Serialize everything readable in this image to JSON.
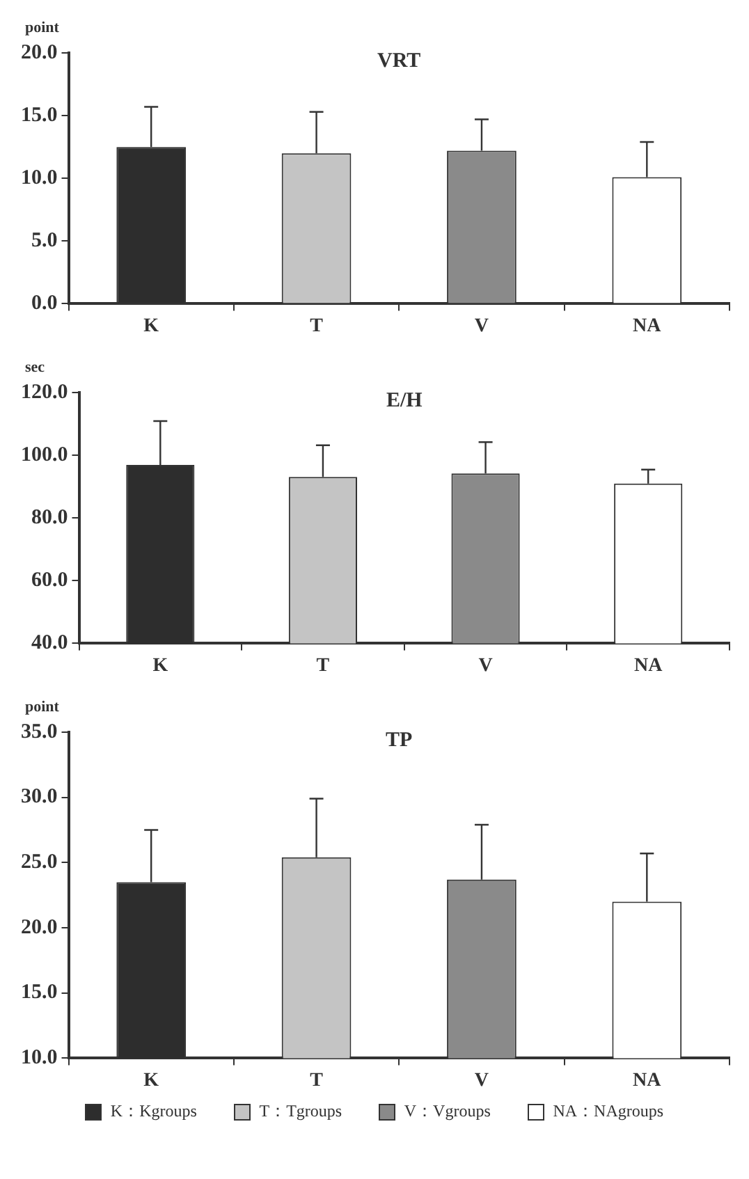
{
  "chart_data": [
    {
      "type": "bar",
      "title": "VRT",
      "ylabel": "point",
      "categories": [
        "K",
        "T",
        "V",
        "NA"
      ],
      "values": [
        12.5,
        12.0,
        12.2,
        10.1
      ],
      "colors": [
        "#2d2d2d",
        "#c4c4c4",
        "#8a8a8a",
        "#ffffff"
      ],
      "errors": [
        [
          12.5,
          15.7
        ],
        [
          12.0,
          15.3
        ],
        [
          12.2,
          14.7
        ],
        [
          10.1,
          12.9
        ]
      ],
      "ylim": [
        0,
        20
      ],
      "yticks": [
        {
          "value": 0,
          "label": "0.0"
        },
        {
          "value": 5,
          "label": "5.0"
        },
        {
          "value": 10,
          "label": "10.0"
        },
        {
          "value": 15,
          "label": "15.0"
        },
        {
          "value": 20,
          "label": "20.0"
        }
      ],
      "grid": false,
      "legend": false
    },
    {
      "type": "bar",
      "title": "E/H",
      "ylabel": "sec",
      "categories": [
        "K",
        "T",
        "V",
        "NA"
      ],
      "values": [
        96.9,
        93.1,
        94.2,
        91.0
      ],
      "colors": [
        "#2d2d2d",
        "#c4c4c4",
        "#8a8a8a",
        "#ffffff"
      ],
      "errors": [
        [
          96.9,
          110.9
        ],
        [
          93.1,
          103.2
        ],
        [
          94.2,
          104.2
        ],
        [
          91.0,
          95.4
        ]
      ],
      "ylim": [
        40,
        120
      ],
      "yticks": [
        {
          "value": 40,
          "label": "40.0"
        },
        {
          "value": 60,
          "label": "60.0"
        },
        {
          "value": 80,
          "label": "80.0"
        },
        {
          "value": 100,
          "label": "100.0"
        },
        {
          "value": 120,
          "label": "120.0"
        }
      ],
      "grid": false,
      "legend": false
    },
    {
      "type": "bar",
      "title": "TP",
      "ylabel": "point",
      "categories": [
        "K",
        "T",
        "V",
        "NA"
      ],
      "values": [
        23.5,
        25.4,
        23.7,
        22.0
      ],
      "colors": [
        "#2d2d2d",
        "#c4c4c4",
        "#8a8a8a",
        "#ffffff"
      ],
      "errors": [
        [
          23.5,
          27.5
        ],
        [
          25.4,
          29.9
        ],
        [
          23.7,
          27.9
        ],
        [
          22.0,
          25.7
        ]
      ],
      "ylim": [
        10,
        35
      ],
      "yticks": [
        {
          "value": 10,
          "label": "10.0"
        },
        {
          "value": 15,
          "label": "15.0"
        },
        {
          "value": 20,
          "label": "20.0"
        },
        {
          "value": 25,
          "label": "25.0"
        },
        {
          "value": 30,
          "label": "30.0"
        },
        {
          "value": 35,
          "label": "35.0"
        }
      ],
      "grid": false,
      "annotations": [
        "K：Kgroups",
        "T：Tgroups",
        "V：Vgroups",
        "NA：NAgroups"
      ]
    }
  ]
}
